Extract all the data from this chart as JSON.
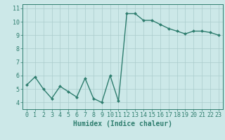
{
  "x": [
    0,
    1,
    2,
    3,
    4,
    5,
    6,
    7,
    8,
    9,
    10,
    11,
    12,
    13,
    14,
    15,
    16,
    17,
    18,
    19,
    20,
    21,
    22,
    23
  ],
  "y": [
    5.3,
    5.9,
    5.0,
    4.3,
    5.2,
    4.8,
    4.4,
    5.8,
    4.3,
    4.0,
    6.0,
    4.1,
    10.6,
    10.6,
    10.1,
    10.1,
    9.8,
    9.5,
    9.3,
    9.1,
    9.3,
    9.3,
    9.2,
    9.0
  ],
  "line_color": "#2e7d6e",
  "marker": "D",
  "marker_size": 2,
  "bg_color": "#cce8e8",
  "grid_color": "#aacccc",
  "xlabel": "Humidex (Indice chaleur)",
  "ylim": [
    3.5,
    11.3
  ],
  "yticks": [
    4,
    5,
    6,
    7,
    8,
    9,
    10,
    11
  ],
  "xticks": [
    0,
    1,
    2,
    3,
    4,
    5,
    6,
    7,
    8,
    9,
    10,
    11,
    12,
    13,
    14,
    15,
    16,
    17,
    18,
    19,
    20,
    21,
    22,
    23
  ],
  "xlabel_fontsize": 7,
  "tick_fontsize": 6,
  "line_width": 1.0
}
